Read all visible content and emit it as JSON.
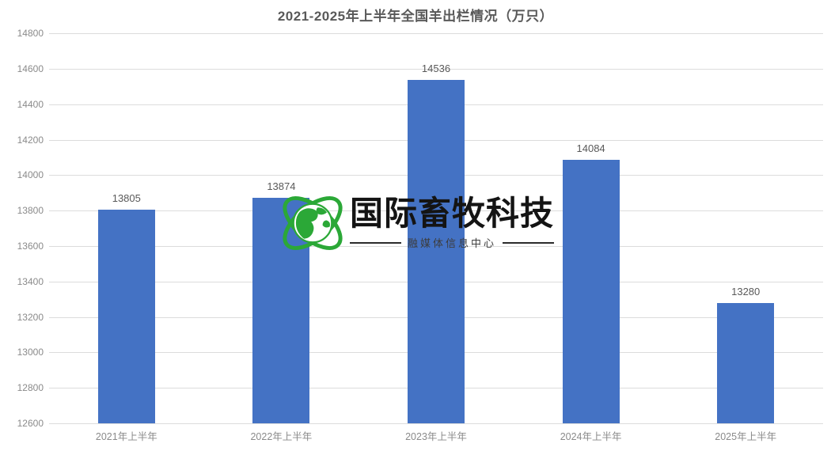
{
  "colors": {
    "bar": "#4472C4",
    "gridline": "#DCDCDC",
    "title_text": "#595959",
    "axis_text": "#8A8A8A",
    "value_text": "#595959",
    "logo_green": "#2BA837",
    "logo_text": "#141414"
  },
  "watermark": {
    "brand": "国际畜牧科技",
    "subtitle": "融媒体信息中心",
    "icon": "globe-orbit-icon"
  },
  "chart_data": {
    "type": "bar",
    "title": "2021-2025年上半年全国羊出栏情况（万只）",
    "categories": [
      "2021年上半年",
      "2022年上半年",
      "2023年上半年",
      "2024年上半年",
      "2025年上半年"
    ],
    "values": [
      13805,
      13874,
      14536,
      14084,
      13280
    ],
    "xlabel": "",
    "ylabel": "",
    "ylim": [
      12600,
      14800
    ],
    "ytick_step": 200,
    "yticks": [
      12600,
      12800,
      13000,
      13200,
      13400,
      13600,
      13800,
      14000,
      14200,
      14400,
      14600,
      14800
    ],
    "grid": true,
    "legend": false,
    "data_labels": true,
    "bar_color": "#4472C4"
  }
}
